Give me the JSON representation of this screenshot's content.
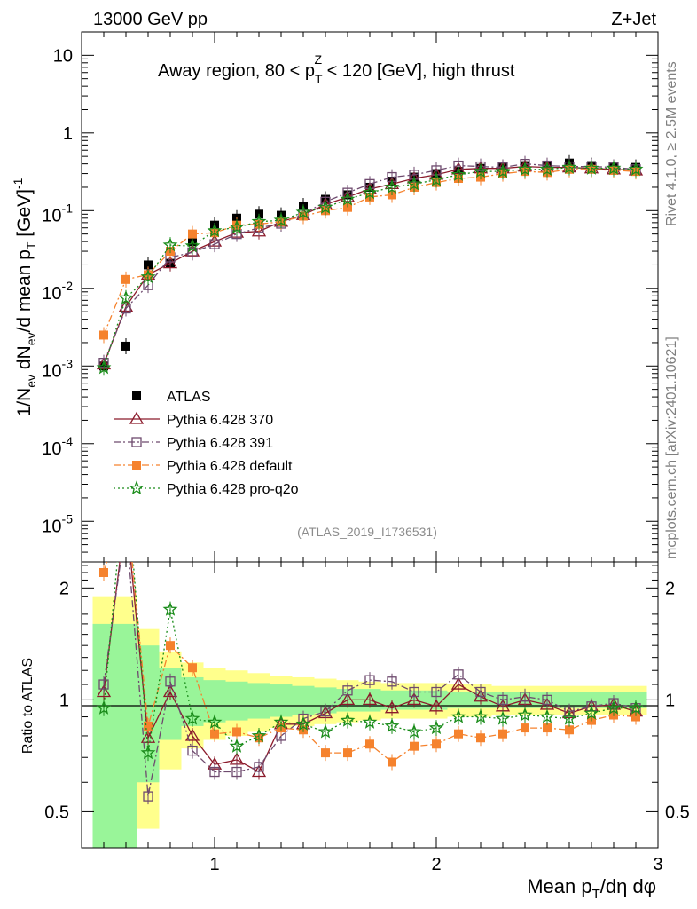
{
  "header": {
    "left": "13000 GeV pp",
    "right": "Z+Jet"
  },
  "side_text": {
    "rivet": "Rivet 4.1.0, ≥ 2.5M events",
    "mcplots": "mcplots.cern.ch [arXiv:2401.10621]"
  },
  "analysis_tag": "(ATLAS_2019_I1736531)",
  "chart_data": {
    "type": "scatter",
    "title": "Away region, 80 < pT^Z < 120 [GeV], high thrust",
    "title_parts": {
      "a": "Away region, 80 < p",
      "sub": "T",
      "sup": "Z",
      "b": " < 120 [GeV], high thrust"
    },
    "xlabel": "Mean pT/dη dφ",
    "xlabel_parts": {
      "a": "Mean p",
      "sub": "T",
      "b": "/dη dφ"
    },
    "ylabel": "1/Nev dNev/d mean pT [GeV]^-1",
    "ylabel_parts": {
      "a": "1/N",
      "sub1": "ev",
      "b": " dN",
      "sub2": "ev",
      "c": "/d mean p",
      "sub3": "T",
      "d": " [GeV]",
      "sup": "-1"
    },
    "ratio_ylabel": "Ratio to ATLAS",
    "xlim": [
      0.4,
      3.0
    ],
    "ylim": [
      3e-06,
      20
    ],
    "ratio_ylim": [
      0.4,
      2.35
    ],
    "yscale": "log",
    "ratio_yscale": "log",
    "x_ticks": [
      "1",
      "2",
      "3"
    ],
    "y_ticks": [
      "10",
      "1",
      "10^-1",
      "10^-2",
      "10^-3",
      "10^-4",
      "10^-5"
    ],
    "ratio_ticks": [
      "0.5",
      "1",
      "2"
    ],
    "x": [
      0.5,
      0.6,
      0.7,
      0.8,
      0.9,
      1.0,
      1.1,
      1.2,
      1.3,
      1.4,
      1.5,
      1.6,
      1.7,
      1.8,
      1.9,
      2.0,
      2.1,
      2.2,
      2.3,
      2.4,
      2.5,
      2.6,
      2.7,
      2.8,
      2.9
    ],
    "bands": {
      "green_halfwidth": [
        0.6,
        0.6,
        0.4,
        0.22,
        0.15,
        0.13,
        0.12,
        0.11,
        0.1,
        0.09,
        0.08,
        0.07,
        0.07,
        0.06,
        0.06,
        0.06,
        0.05,
        0.05,
        0.05,
        0.05,
        0.05,
        0.05,
        0.05,
        0.05,
        0.05
      ],
      "yellow_halfwidth": [
        0.9,
        0.9,
        0.55,
        0.35,
        0.26,
        0.22,
        0.2,
        0.18,
        0.16,
        0.15,
        0.14,
        0.13,
        0.12,
        0.11,
        0.11,
        0.11,
        0.1,
        0.1,
        0.09,
        0.09,
        0.09,
        0.09,
        0.09,
        0.09,
        0.09
      ]
    },
    "series": [
      {
        "name": "ATLAS",
        "color": "#000000",
        "marker": "filled-square",
        "line": "none",
        "values": [
          0.001,
          0.0018,
          0.02,
          0.021,
          0.04,
          0.065,
          0.08,
          0.09,
          0.087,
          0.115,
          0.14,
          0.16,
          0.2,
          0.24,
          0.27,
          0.3,
          0.32,
          0.35,
          0.36,
          0.38,
          0.37,
          0.41,
          0.38,
          0.36,
          0.36
        ],
        "ratio": [
          1,
          1,
          1,
          1,
          1,
          1,
          1,
          1,
          1,
          1,
          1,
          1,
          1,
          1,
          1,
          1,
          1,
          1,
          1,
          1,
          1,
          1,
          1,
          1,
          1
        ]
      },
      {
        "name": "Pythia 6.428 370",
        "color": "#8b1a2b",
        "marker": "open-triangle",
        "line": "solid",
        "values": [
          0.00105,
          0.0058,
          0.015,
          0.021,
          0.03,
          0.04,
          0.052,
          0.054,
          0.072,
          0.088,
          0.12,
          0.15,
          0.19,
          0.22,
          0.26,
          0.29,
          0.34,
          0.35,
          0.35,
          0.37,
          0.36,
          0.36,
          0.35,
          0.34,
          0.33
        ],
        "ratio": [
          1.05,
          3.2,
          0.79,
          1.05,
          0.8,
          0.67,
          0.69,
          0.64,
          0.86,
          0.86,
          0.92,
          1.0,
          1.0,
          0.95,
          1.0,
          0.96,
          1.1,
          1.02,
          0.96,
          1.0,
          0.97,
          0.92,
          0.96,
          0.97,
          0.93
        ]
      },
      {
        "name": "Pythia 6.428 391",
        "color": "#6e4a6e",
        "marker": "open-square",
        "line": "dashdot",
        "values": [
          0.0011,
          0.0055,
          0.011,
          0.025,
          0.029,
          0.037,
          0.05,
          0.06,
          0.068,
          0.09,
          0.13,
          0.17,
          0.22,
          0.27,
          0.29,
          0.33,
          0.38,
          0.37,
          0.36,
          0.4,
          0.38,
          0.37,
          0.37,
          0.36,
          0.34
        ],
        "ratio": [
          1.1,
          3.0,
          0.55,
          1.12,
          0.73,
          0.64,
          0.64,
          0.66,
          0.8,
          0.89,
          0.93,
          1.06,
          1.13,
          1.12,
          1.05,
          1.05,
          1.17,
          1.05,
          1.0,
          1.02,
          1.0,
          0.93,
          0.96,
          0.98,
          0.95
        ]
      },
      {
        "name": "Pythia 6.428 default",
        "color": "#f5822d",
        "marker": "filled-square",
        "line": "dashdot",
        "values": [
          0.0025,
          0.013,
          0.015,
          0.03,
          0.05,
          0.052,
          0.065,
          0.067,
          0.072,
          0.085,
          0.1,
          0.11,
          0.15,
          0.16,
          0.2,
          0.23,
          0.26,
          0.27,
          0.3,
          0.32,
          0.31,
          0.34,
          0.34,
          0.33,
          0.32
        ],
        "ratio": [
          2.2,
          3.5,
          0.85,
          1.4,
          1.22,
          0.81,
          0.82,
          0.79,
          0.84,
          0.83,
          0.72,
          0.72,
          0.76,
          0.68,
          0.75,
          0.76,
          0.81,
          0.79,
          0.81,
          0.84,
          0.84,
          0.83,
          0.88,
          0.91,
          0.9
        ]
      },
      {
        "name": "Pythia 6.428 pro-q2o",
        "color": "#1a8c1a",
        "marker": "open-star",
        "line": "dotted",
        "values": [
          0.00095,
          0.0075,
          0.014,
          0.036,
          0.035,
          0.055,
          0.061,
          0.072,
          0.075,
          0.095,
          0.11,
          0.14,
          0.17,
          0.2,
          0.22,
          0.25,
          0.29,
          0.32,
          0.32,
          0.34,
          0.34,
          0.36,
          0.35,
          0.35,
          0.34
        ],
        "ratio": [
          0.95,
          4.2,
          0.72,
          1.75,
          0.89,
          0.87,
          0.75,
          0.8,
          0.87,
          0.86,
          0.82,
          0.88,
          0.87,
          0.85,
          0.82,
          0.84,
          0.9,
          0.9,
          0.89,
          0.91,
          0.9,
          0.89,
          0.92,
          0.95,
          0.95
        ]
      }
    ]
  }
}
